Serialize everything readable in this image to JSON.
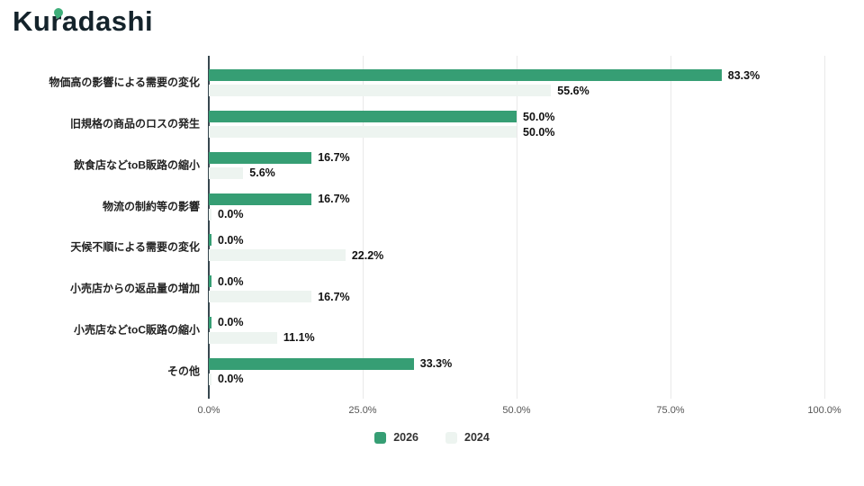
{
  "logo": {
    "text": "Kuradashi",
    "accent_color": "#3fae7a"
  },
  "chart_data": {
    "type": "bar",
    "orientation": "horizontal",
    "title": "",
    "categories": [
      "物価高の影響による需要の変化",
      "旧規格の商品のロスの発生",
      "飲食店などtoB販路の縮小",
      "物流の制約等の影響",
      "天候不順による需要の変化",
      "小売店からの返品量の増加",
      "小売店などtoC販路の縮小",
      "その他"
    ],
    "series": [
      {
        "name": "2026",
        "color": "#369e74",
        "values": [
          83.3,
          50.0,
          16.7,
          16.7,
          0.0,
          0.0,
          0.0,
          33.3
        ]
      },
      {
        "name": "2024",
        "color": "#edf4f0",
        "values": [
          55.6,
          50.0,
          5.6,
          0.0,
          22.2,
          16.7,
          11.1,
          0.0
        ]
      }
    ],
    "xlim": [
      0,
      100
    ],
    "x_ticks": [
      "0.0%",
      "25.0%",
      "50.0%",
      "75.0%",
      "100.0%"
    ],
    "grid": "vertical",
    "legend_position": "bottom"
  },
  "legend": {
    "items": [
      {
        "label": "2026",
        "color": "#369e74"
      },
      {
        "label": "2024",
        "color": "#edf4f0"
      }
    ]
  }
}
